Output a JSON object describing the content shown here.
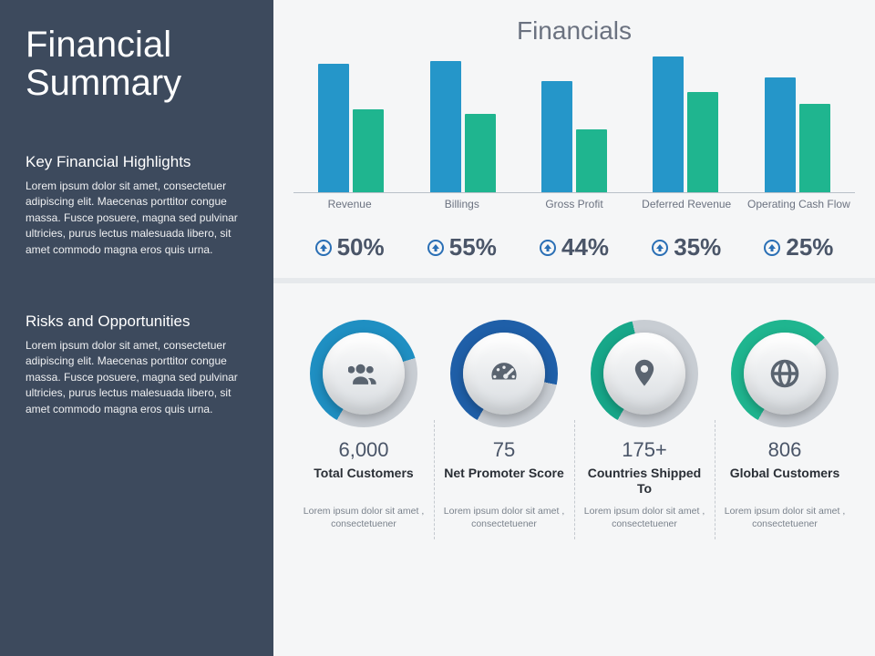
{
  "colors": {
    "sidebar_bg": "#3d4a5d",
    "main_bg": "#f5f6f7",
    "main_title": "#6b7280",
    "cat_label": "#6b7280",
    "value_text": "#4a5568",
    "axis_line": "#b9c0c8",
    "divider_band": "#e6e9ec",
    "bar_a": "#2596c9",
    "bar_b": "#1fb58f",
    "arrow": "#2a6fb5",
    "gauge_icon": "#5a6470",
    "gauge_track": "#c8cdd3",
    "gauge_inner_top": "#fdfdfd",
    "gauge_inner_bot": "#d8dce0",
    "gauge_colors": [
      "#1f8fc2",
      "#1f5fa8",
      "#17a789",
      "#1fb58f"
    ],
    "gauge_desc": "#7a828c",
    "cell_divider": "#c4c9cf",
    "gauge_band": "#e3e6e9"
  },
  "sidebar": {
    "title": "Financial Summary",
    "sections": [
      {
        "heading": "Key Financial Highlights",
        "body": "Lorem ipsum dolor sit amet, consectetuer adipiscing elit. Maecenas porttitor congue massa. Fusce posuere, magna sed pulvinar ultricies, purus lectus malesuada libero, sit amet commodo  magna eros quis urna."
      },
      {
        "heading": "Risks and Opportunities",
        "body": "Lorem ipsum dolor sit amet, consectetuer adipiscing elit. Maecenas porttitor congue massa. Fusce posuere, magna sed pulvinar ultricies, purus lectus malesuada libero, sit amet commodo  magna eros quis urna."
      }
    ]
  },
  "chart": {
    "title": "Financials",
    "type": "grouped-bar",
    "max_value": 100,
    "categories": [
      "Revenue",
      "Billings",
      "Gross Profit",
      "Deferred Revenue",
      "Operating Cash Flow"
    ],
    "series_a": [
      90,
      92,
      78,
      95,
      80
    ],
    "series_b": [
      58,
      55,
      44,
      70,
      62
    ],
    "pct_labels": [
      "50%",
      "55%",
      "44%",
      "35%",
      "25%"
    ],
    "arrow_direction": [
      "up",
      "up",
      "up",
      "up",
      "up"
    ]
  },
  "gauges": [
    {
      "icon": "users",
      "ring_pct": 62,
      "value": "6,000",
      "title": "Total Customers",
      "desc": "Lorem ipsum dolor sit amet , consectetuener"
    },
    {
      "icon": "gauge",
      "ring_pct": 70,
      "value": "75",
      "title": "Net Promoter Score",
      "desc": "Lorem ipsum dolor sit amet , consectetuener"
    },
    {
      "icon": "pin",
      "ring_pct": 38,
      "value": "175+",
      "title": "Countries Shipped To",
      "desc": "Lorem ipsum dolor sit amet , consectetuener"
    },
    {
      "icon": "globe",
      "ring_pct": 55,
      "value": "806",
      "title": "Global Customers",
      "desc": "Lorem ipsum dolor sit amet , consectetuener"
    }
  ],
  "typography": {
    "sidebar_title_pt": 40,
    "sidebar_h2_pt": 17,
    "sidebar_body_pt": 12,
    "main_title_pt": 28,
    "pct_pt": 26,
    "gauge_val_pt": 22,
    "gauge_title_pt": 14
  }
}
